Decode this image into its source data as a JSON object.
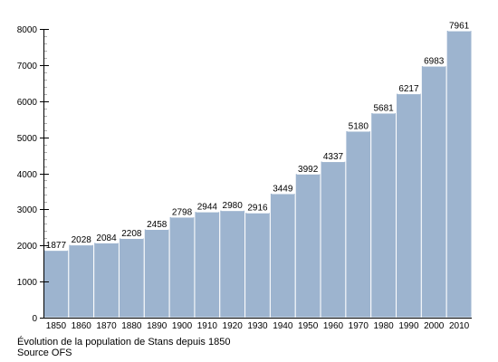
{
  "caption": {
    "line1": "Évolution de la population de Stans depuis 1850",
    "line2": "Source OFS"
  },
  "colors": {
    "bar": "#9db4cf",
    "bar_edge": "#ffffff",
    "axis": "#000000",
    "grid_minor": "#b0b0b0",
    "label_bg": "#ffffff"
  },
  "chart_data": {
    "type": "bar",
    "categories": [
      "1850",
      "1860",
      "1870",
      "1880",
      "1890",
      "1900",
      "1910",
      "1920",
      "1930",
      "1940",
      "1950",
      "1960",
      "1970",
      "1980",
      "1990",
      "2000",
      "2010"
    ],
    "values": [
      1877,
      2028,
      2084,
      2208,
      2458,
      2798,
      2944,
      2980,
      2916,
      3449,
      3992,
      4337,
      5180,
      5681,
      6217,
      6983,
      7961
    ],
    "ylim": [
      0,
      8000
    ],
    "yticks": [
      0,
      1000,
      2000,
      3000,
      4000,
      5000,
      6000,
      7000,
      8000
    ],
    "minor_tick_step": 200,
    "data_labels": true,
    "grid": false,
    "title": "",
    "xlabel": "",
    "ylabel": ""
  }
}
